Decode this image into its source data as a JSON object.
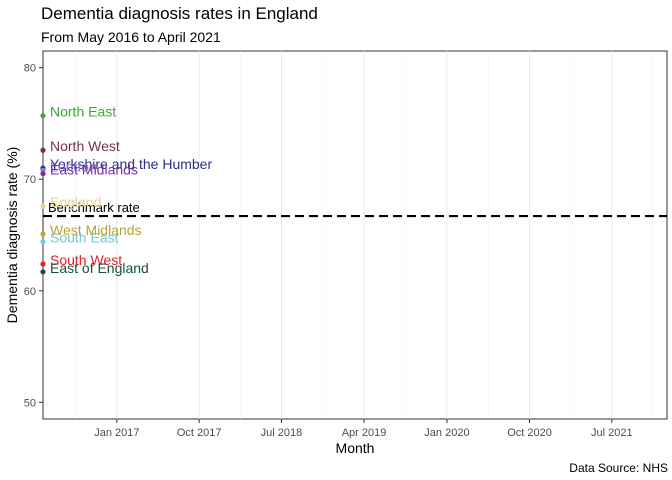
{
  "chart_data": {
    "type": "scatter",
    "title": "Dementia diagnosis rates in England",
    "subtitle": "From May 2016 to April 2021",
    "caption": "Data Source: NHS",
    "xlabel": "Month",
    "ylabel": "Dementia diagnosis rate (%)",
    "xlim": [
      "2016-05-01",
      "2021-12-31"
    ],
    "ylim": [
      48.5,
      81.5
    ],
    "x_ticks": [
      {
        "date": "2017-01-01",
        "label": "Jan 2017"
      },
      {
        "date": "2017-10-01",
        "label": "Oct 2017"
      },
      {
        "date": "2018-07-01",
        "label": "Jul 2018"
      },
      {
        "date": "2019-04-01",
        "label": "Apr 2019"
      },
      {
        "date": "2020-01-01",
        "label": "Jan 2020"
      },
      {
        "date": "2020-10-01",
        "label": "Oct 2020"
      },
      {
        "date": "2021-07-01",
        "label": "Jul 2021"
      }
    ],
    "y_ticks": [
      50,
      60,
      70,
      80
    ],
    "grid": "vertical",
    "reference_line": {
      "label": "Benchmark rate",
      "value": 66.7,
      "style": "dashed"
    },
    "points": [
      {
        "label": "North East",
        "date": "2016-05-01",
        "value": 75.7,
        "color": "#3aaa35"
      },
      {
        "label": "North West",
        "date": "2016-05-01",
        "value": 72.6,
        "color": "#7a2f4f"
      },
      {
        "label": "Yorkshire and the Humber",
        "date": "2016-05-01",
        "value": 71.0,
        "color": "#2e2d8c"
      },
      {
        "label": "London",
        "date": "2016-05-01",
        "value": 70.8,
        "color": "#8c7cd6"
      },
      {
        "label": "East Midlands",
        "date": "2016-05-01",
        "value": 70.5,
        "color": "#7b2d9c"
      },
      {
        "label": "England",
        "date": "2016-05-01",
        "value": 67.6,
        "color": "#e8d48a"
      },
      {
        "label": "West Midlands",
        "date": "2016-05-01",
        "value": 65.1,
        "color": "#b8a533"
      },
      {
        "label": "South East",
        "date": "2016-05-01",
        "value": 64.4,
        "color": "#6ec8d8"
      },
      {
        "label": "South West",
        "date": "2016-05-01",
        "value": 62.4,
        "color": "#e0242c"
      },
      {
        "label": "East of England",
        "date": "2016-05-01",
        "value": 61.7,
        "color": "#16503d"
      }
    ]
  }
}
